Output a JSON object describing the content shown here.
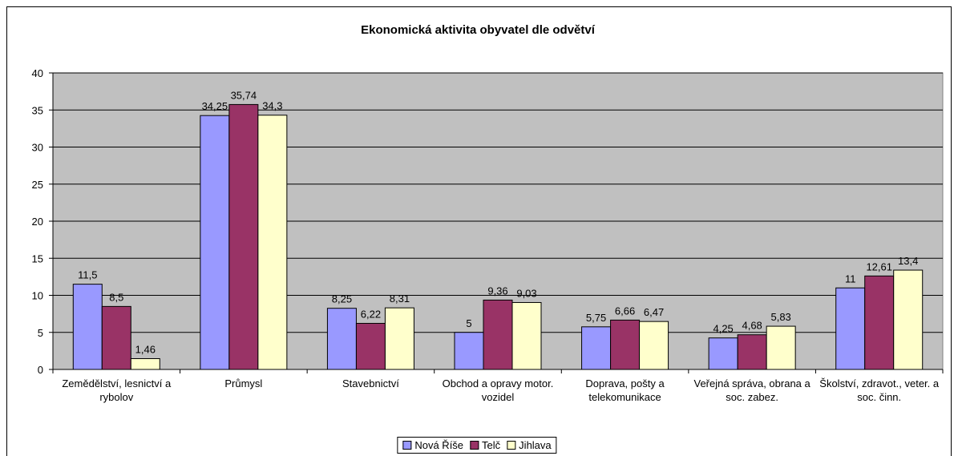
{
  "chart_data": {
    "type": "bar",
    "title": "Ekonomická aktivita obyvatel dle odvětví",
    "categories": [
      "Zemědělství, lesnictví a rybolov",
      "Průmysl",
      "Stavebnictví",
      "Obchod a opravy motor. vozidel",
      "Doprava, pošty a telekomunikace",
      "Veřejná správa, obrana a soc. zabez.",
      "Školství, zdravot., veter. a soc. činn."
    ],
    "series": [
      {
        "name": "Nová Říše",
        "color": "#9999ff",
        "values": [
          11.5,
          34.25,
          8.25,
          5,
          5.75,
          4.25,
          11
        ],
        "value_labels": [
          "11,5",
          "34,25",
          "8,25",
          "5",
          "5,75",
          "4,25",
          "11"
        ]
      },
      {
        "name": "Telč",
        "color": "#993366",
        "values": [
          8.5,
          35.74,
          6.22,
          9.36,
          6.66,
          4.68,
          12.61
        ],
        "value_labels": [
          "8,5",
          "35,74",
          "6,22",
          "9,36",
          "6,66",
          "4,68",
          "12,61"
        ]
      },
      {
        "name": "Jihlava",
        "color": "#ffffcc",
        "values": [
          1.46,
          34.3,
          8.31,
          9.03,
          6.47,
          5.83,
          13.4
        ],
        "value_labels": [
          "1,46",
          "34,3",
          "8,31",
          "9,03",
          "6,47",
          "5,83",
          "13,4"
        ]
      }
    ],
    "ylim": [
      0,
      40
    ],
    "yticks": [
      0,
      5,
      10,
      15,
      20,
      25,
      30,
      35,
      40
    ],
    "grid": true,
    "legend": "bottom",
    "plot_background": "#c0c0c0"
  }
}
